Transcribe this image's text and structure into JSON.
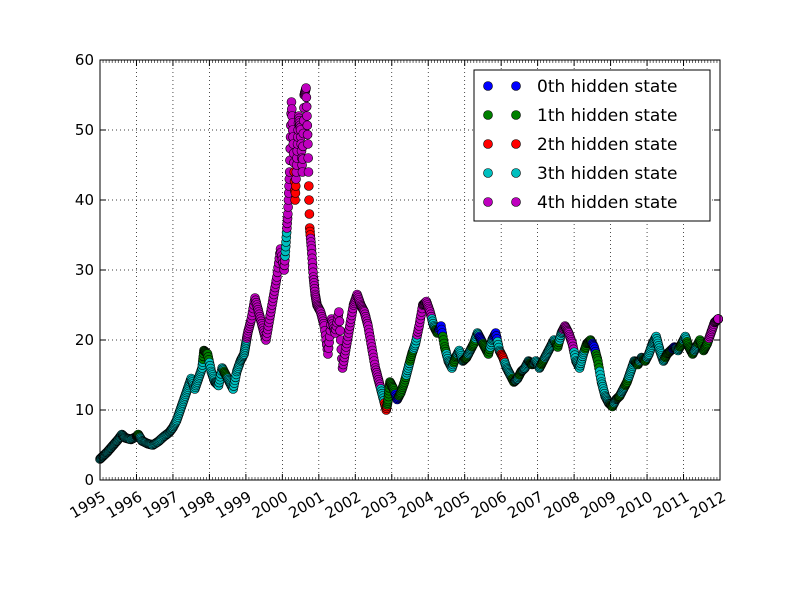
{
  "chart_data": {
    "type": "scatter",
    "title": "",
    "xlabel": "",
    "ylabel": "",
    "xlim": [
      1995,
      2012
    ],
    "ylim": [
      0,
      60
    ],
    "grid": true,
    "legend_position": "upper right",
    "x_tick_labels": [
      "1995",
      "1996",
      "1997",
      "1998",
      "1999",
      "2000",
      "2001",
      "2002",
      "2003",
      "2004",
      "2005",
      "2006",
      "2007",
      "2008",
      "2009",
      "2010",
      "2011",
      "2012"
    ],
    "y_tick_labels": [
      "0",
      "10",
      "20",
      "30",
      "40",
      "50",
      "60"
    ],
    "y_ticks": [
      0,
      10,
      20,
      30,
      40,
      50,
      60
    ],
    "series": [
      {
        "name": "0th hidden state",
        "color": "#0000ff"
      },
      {
        "name": "1th hidden state",
        "color": "#007f00"
      },
      {
        "name": "2th hidden state",
        "color": "#ff0000"
      },
      {
        "name": "3th hidden state",
        "color": "#00bfbf"
      },
      {
        "name": "4th hidden state",
        "color": "#bf00bf"
      }
    ],
    "points": [
      [
        1995.0,
        3.0,
        3
      ],
      [
        1995.1,
        3.5,
        3
      ],
      [
        1995.2,
        4.0,
        3
      ],
      [
        1995.3,
        4.6,
        3
      ],
      [
        1995.4,
        5.2,
        3
      ],
      [
        1995.5,
        5.8,
        3
      ],
      [
        1995.6,
        6.5,
        3
      ],
      [
        1995.7,
        6.0,
        3
      ],
      [
        1995.85,
        5.8,
        3
      ],
      [
        1996.0,
        6.2,
        3
      ],
      [
        1996.05,
        6.5,
        1
      ],
      [
        1996.15,
        5.6,
        3
      ],
      [
        1996.3,
        5.2,
        3
      ],
      [
        1996.45,
        5.0,
        3
      ],
      [
        1996.6,
        5.5,
        3
      ],
      [
        1996.75,
        6.2,
        3
      ],
      [
        1996.9,
        6.8,
        3
      ],
      [
        1997.0,
        7.5,
        3
      ],
      [
        1997.1,
        8.5,
        3
      ],
      [
        1997.2,
        10.0,
        3
      ],
      [
        1997.3,
        11.5,
        3
      ],
      [
        1997.4,
        13.0,
        3
      ],
      [
        1997.5,
        14.5,
        3
      ],
      [
        1997.6,
        13.0,
        3
      ],
      [
        1997.7,
        14.5,
        3
      ],
      [
        1997.8,
        16.0,
        3
      ],
      [
        1997.85,
        18.5,
        1
      ],
      [
        1997.95,
        18.0,
        1
      ],
      [
        1998.05,
        15.5,
        3
      ],
      [
        1998.15,
        14.0,
        3
      ],
      [
        1998.25,
        13.5,
        3
      ],
      [
        1998.35,
        16.0,
        3
      ],
      [
        1998.45,
        15.0,
        1
      ],
      [
        1998.55,
        14.0,
        3
      ],
      [
        1998.65,
        13.0,
        3
      ],
      [
        1998.75,
        15.5,
        3
      ],
      [
        1998.85,
        17.0,
        3
      ],
      [
        1998.95,
        18.0,
        3
      ],
      [
        1999.0,
        19.5,
        3
      ],
      [
        1999.05,
        21.0,
        4
      ],
      [
        1999.15,
        23.0,
        4
      ],
      [
        1999.25,
        26.0,
        4
      ],
      [
        1999.35,
        24.0,
        4
      ],
      [
        1999.45,
        22.0,
        4
      ],
      [
        1999.55,
        20.0,
        4
      ],
      [
        1999.65,
        23.0,
        4
      ],
      [
        1999.75,
        26.0,
        4
      ],
      [
        1999.85,
        29.0,
        4
      ],
      [
        1999.95,
        33.0,
        4
      ],
      [
        2000.05,
        30.0,
        4
      ],
      [
        2000.1,
        34.0,
        3
      ],
      [
        2000.15,
        38.0,
        4
      ],
      [
        2000.2,
        44.0,
        4
      ],
      [
        2000.25,
        54.0,
        4
      ],
      [
        2000.3,
        48.0,
        4
      ],
      [
        2000.35,
        40.0,
        2
      ],
      [
        2000.4,
        46.0,
        4
      ],
      [
        2000.45,
        52.0,
        4
      ],
      [
        2000.5,
        50.0,
        4
      ],
      [
        2000.55,
        44.0,
        4
      ],
      [
        2000.6,
        55.0,
        4
      ],
      [
        2000.65,
        56.0,
        4
      ],
      [
        2000.7,
        48.0,
        4
      ],
      [
        2000.75,
        36.0,
        2
      ],
      [
        2000.8,
        33.0,
        4
      ],
      [
        2000.85,
        29.0,
        4
      ],
      [
        2000.9,
        26.5,
        4
      ],
      [
        2000.95,
        25.0,
        4
      ],
      [
        2001.05,
        24.0,
        4
      ],
      [
        2001.15,
        22.0,
        4
      ],
      [
        2001.25,
        18.0,
        4
      ],
      [
        2001.35,
        23.0,
        4
      ],
      [
        2001.45,
        21.0,
        4
      ],
      [
        2001.55,
        24.0,
        4
      ],
      [
        2001.65,
        16.0,
        4
      ],
      [
        2001.75,
        19.0,
        4
      ],
      [
        2001.85,
        22.0,
        4
      ],
      [
        2001.95,
        25.0,
        4
      ],
      [
        2002.05,
        26.5,
        4
      ],
      [
        2002.15,
        25.0,
        4
      ],
      [
        2002.25,
        24.0,
        4
      ],
      [
        2002.35,
        22.0,
        4
      ],
      [
        2002.45,
        19.0,
        4
      ],
      [
        2002.55,
        16.0,
        4
      ],
      [
        2002.65,
        14.0,
        4
      ],
      [
        2002.75,
        12.0,
        3
      ],
      [
        2002.85,
        10.0,
        2
      ],
      [
        2002.9,
        11.5,
        1
      ],
      [
        2002.95,
        14.0,
        1
      ],
      [
        2003.05,
        13.0,
        1
      ],
      [
        2003.15,
        11.5,
        0
      ],
      [
        2003.25,
        12.5,
        1
      ],
      [
        2003.35,
        14.0,
        1
      ],
      [
        2003.45,
        16.0,
        3
      ],
      [
        2003.55,
        18.0,
        1
      ],
      [
        2003.65,
        19.5,
        3
      ],
      [
        2003.75,
        22.0,
        4
      ],
      [
        2003.85,
        25.0,
        4
      ],
      [
        2003.95,
        25.5,
        4
      ],
      [
        2004.05,
        24.0,
        4
      ],
      [
        2004.15,
        22.0,
        3
      ],
      [
        2004.25,
        21.0,
        1
      ],
      [
        2004.35,
        22.0,
        0
      ],
      [
        2004.45,
        19.0,
        1
      ],
      [
        2004.55,
        17.0,
        3
      ],
      [
        2004.65,
        16.0,
        3
      ],
      [
        2004.75,
        17.5,
        1
      ],
      [
        2004.85,
        18.5,
        3
      ],
      [
        2004.95,
        17.0,
        3
      ],
      [
        2005.05,
        17.5,
        1
      ],
      [
        2005.15,
        18.5,
        3
      ],
      [
        2005.25,
        19.5,
        1
      ],
      [
        2005.35,
        21.0,
        3
      ],
      [
        2005.45,
        20.0,
        0
      ],
      [
        2005.55,
        19.0,
        1
      ],
      [
        2005.65,
        18.0,
        1
      ],
      [
        2005.75,
        20.0,
        3
      ],
      [
        2005.85,
        21.0,
        0
      ],
      [
        2005.95,
        18.5,
        3
      ],
      [
        2006.05,
        17.5,
        2
      ],
      [
        2006.15,
        16.0,
        3
      ],
      [
        2006.25,
        15.0,
        3
      ],
      [
        2006.35,
        14.0,
        1
      ],
      [
        2006.45,
        14.5,
        3
      ],
      [
        2006.55,
        15.5,
        1
      ],
      [
        2006.65,
        16.0,
        3
      ],
      [
        2006.75,
        17.0,
        3
      ],
      [
        2006.85,
        16.5,
        1
      ],
      [
        2006.95,
        17.0,
        3
      ],
      [
        2007.05,
        16.0,
        3
      ],
      [
        2007.15,
        17.0,
        1
      ],
      [
        2007.25,
        18.0,
        3
      ],
      [
        2007.35,
        19.0,
        3
      ],
      [
        2007.45,
        20.0,
        3
      ],
      [
        2007.55,
        19.0,
        1
      ],
      [
        2007.65,
        21.0,
        3
      ],
      [
        2007.75,
        22.0,
        4
      ],
      [
        2007.85,
        21.0,
        4
      ],
      [
        2007.95,
        19.5,
        4
      ],
      [
        2008.05,
        17.0,
        3
      ],
      [
        2008.15,
        16.0,
        3
      ],
      [
        2008.25,
        18.0,
        3
      ],
      [
        2008.35,
        19.5,
        1
      ],
      [
        2008.45,
        20.0,
        1
      ],
      [
        2008.55,
        19.0,
        0
      ],
      [
        2008.65,
        17.0,
        1
      ],
      [
        2008.75,
        14.0,
        3
      ],
      [
        2008.85,
        12.0,
        3
      ],
      [
        2008.95,
        11.0,
        3
      ],
      [
        2009.05,
        10.5,
        1
      ],
      [
        2009.15,
        11.5,
        3
      ],
      [
        2009.25,
        12.0,
        1
      ],
      [
        2009.35,
        13.0,
        3
      ],
      [
        2009.45,
        14.0,
        1
      ],
      [
        2009.55,
        15.5,
        3
      ],
      [
        2009.65,
        17.0,
        3
      ],
      [
        2009.75,
        16.5,
        1
      ],
      [
        2009.85,
        17.5,
        3
      ],
      [
        2009.95,
        17.0,
        1
      ],
      [
        2010.05,
        18.0,
        3
      ],
      [
        2010.15,
        19.5,
        3
      ],
      [
        2010.25,
        20.5,
        3
      ],
      [
        2010.35,
        18.5,
        3
      ],
      [
        2010.45,
        17.0,
        3
      ],
      [
        2010.55,
        18.0,
        1
      ],
      [
        2010.65,
        18.5,
        1
      ],
      [
        2010.75,
        19.0,
        0
      ],
      [
        2010.85,
        18.5,
        3
      ],
      [
        2010.95,
        19.5,
        1
      ],
      [
        2011.05,
        20.5,
        3
      ],
      [
        2011.15,
        19.0,
        1
      ],
      [
        2011.25,
        18.0,
        1
      ],
      [
        2011.35,
        19.0,
        3
      ],
      [
        2011.45,
        20.0,
        1
      ],
      [
        2011.55,
        18.5,
        1
      ],
      [
        2011.65,
        19.5,
        1
      ],
      [
        2011.75,
        21.0,
        4
      ],
      [
        2011.85,
        22.5,
        4
      ],
      [
        2011.95,
        23.0,
        4
      ]
    ]
  }
}
